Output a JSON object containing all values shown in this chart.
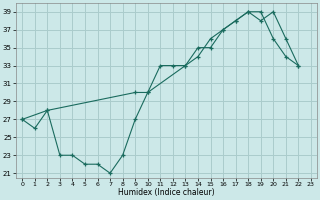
{
  "xlabel": "Humidex (Indice chaleur)",
  "bg_color": "#cce8e8",
  "grid_color": "#aacccc",
  "line_color": "#1a6b5e",
  "line1_x": [
    0,
    1,
    2,
    3,
    4,
    5,
    6,
    7,
    8,
    9,
    10,
    11,
    12,
    13,
    14,
    15,
    16,
    17,
    18,
    19,
    20,
    21,
    22
  ],
  "line1_y": [
    27,
    26,
    28,
    23,
    23,
    22,
    22,
    21,
    23,
    27,
    30,
    33,
    33,
    33,
    35,
    35,
    37,
    38,
    39,
    39,
    36,
    34,
    33
  ],
  "line2_x": [
    0,
    2,
    9,
    10,
    13,
    14,
    15,
    16,
    17,
    18,
    19,
    20,
    21,
    22
  ],
  "line2_y": [
    27,
    28,
    30,
    30,
    33,
    34,
    36,
    37,
    38,
    39,
    38,
    39,
    36,
    33
  ],
  "xlim": [
    -0.5,
    23.5
  ],
  "ylim": [
    20.5,
    40.0
  ],
  "xticks": [
    0,
    1,
    2,
    3,
    4,
    5,
    6,
    7,
    8,
    9,
    10,
    11,
    12,
    13,
    14,
    15,
    16,
    17,
    18,
    19,
    20,
    21,
    22,
    23
  ],
  "yticks": [
    21,
    23,
    25,
    27,
    29,
    31,
    33,
    35,
    37,
    39
  ]
}
